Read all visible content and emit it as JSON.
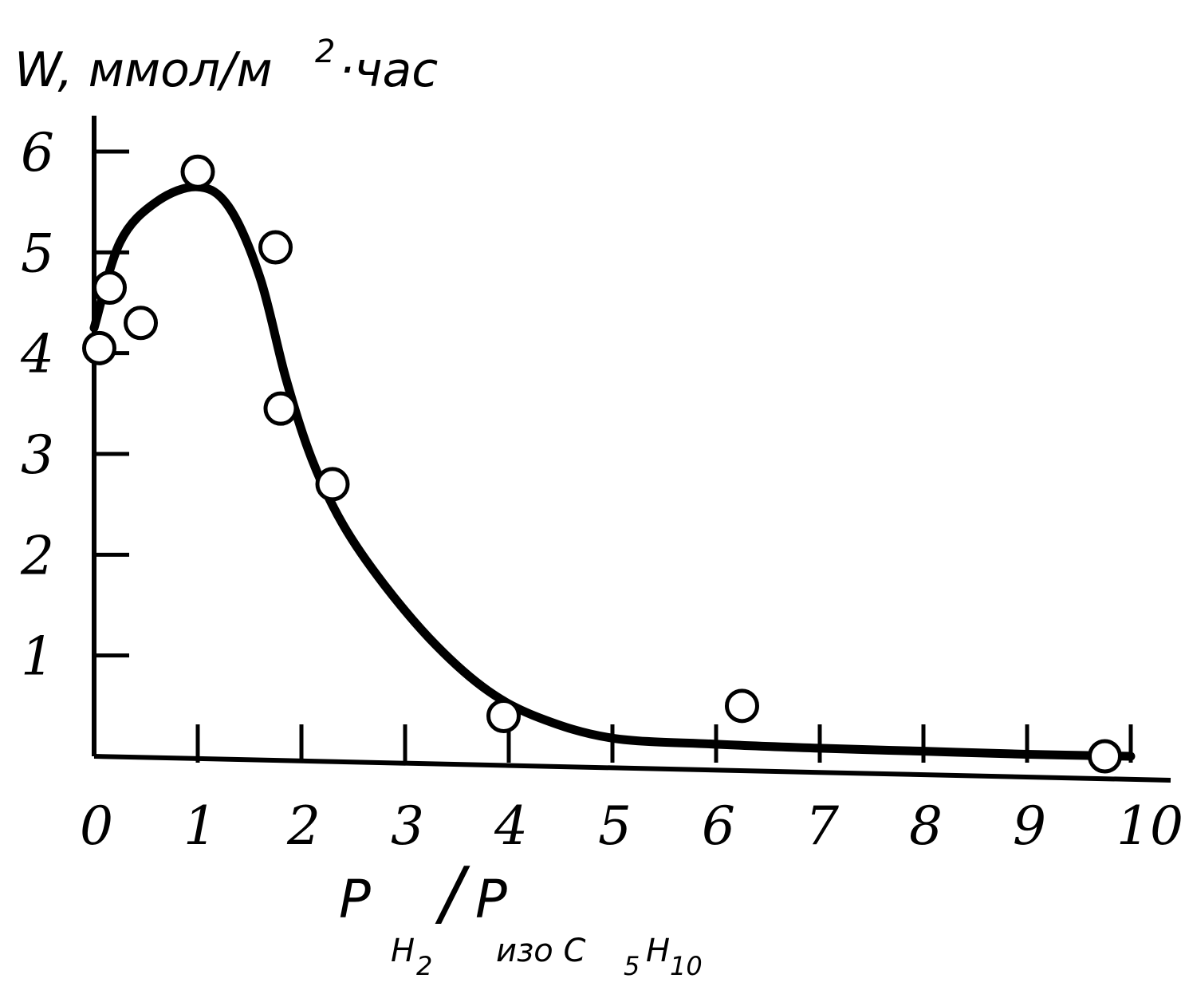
{
  "chart_data": {
    "type": "scatter",
    "ylabel": {
      "main": "W, ммол/м",
      "sup": "2",
      "tail": "·час"
    },
    "xlabel": {
      "num": "P",
      "num_sub": "H",
      "num_sub_sub": "2",
      "slash": "/",
      "den": "P",
      "den_sub_1": "изо C",
      "den_sub_2": "5",
      "den_sub_3": "H",
      "den_sub_4": "10"
    },
    "xlim": [
      0,
      10
    ],
    "ylim": [
      0,
      6
    ],
    "x_ticks": [
      "0",
      "1",
      "2",
      "3",
      "4",
      "5",
      "6",
      "7",
      "8",
      "9",
      "10"
    ],
    "y_ticks": [
      "1",
      "2",
      "3",
      "4",
      "5",
      "6"
    ],
    "grid": false,
    "series": [
      {
        "kind": "points",
        "marker": "open-circle",
        "points": [
          {
            "x": 0.05,
            "y": 4.05
          },
          {
            "x": 0.15,
            "y": 4.65
          },
          {
            "x": 0.45,
            "y": 4.3
          },
          {
            "x": 1.0,
            "y": 5.8
          },
          {
            "x": 1.75,
            "y": 5.05
          },
          {
            "x": 1.8,
            "y": 3.45
          },
          {
            "x": 2.3,
            "y": 2.7
          },
          {
            "x": 3.95,
            "y": 0.4
          },
          {
            "x": 6.25,
            "y": 0.5
          },
          {
            "x": 9.75,
            "y": 0.0
          }
        ]
      },
      {
        "kind": "curve",
        "style": "smooth-fit",
        "points": [
          {
            "x": 0.0,
            "y": 4.25
          },
          {
            "x": 0.25,
            "y": 5.1
          },
          {
            "x": 0.6,
            "y": 5.5
          },
          {
            "x": 1.0,
            "y": 5.65
          },
          {
            "x": 1.3,
            "y": 5.45
          },
          {
            "x": 1.6,
            "y": 4.75
          },
          {
            "x": 1.85,
            "y": 3.75
          },
          {
            "x": 2.1,
            "y": 2.95
          },
          {
            "x": 2.4,
            "y": 2.3
          },
          {
            "x": 2.8,
            "y": 1.7
          },
          {
            "x": 3.3,
            "y": 1.1
          },
          {
            "x": 3.8,
            "y": 0.65
          },
          {
            "x": 4.3,
            "y": 0.38
          },
          {
            "x": 5.0,
            "y": 0.18
          },
          {
            "x": 6.0,
            "y": 0.12
          },
          {
            "x": 7.0,
            "y": 0.08
          },
          {
            "x": 8.0,
            "y": 0.05
          },
          {
            "x": 9.0,
            "y": 0.02
          },
          {
            "x": 10.0,
            "y": 0.0
          }
        ]
      }
    ]
  }
}
